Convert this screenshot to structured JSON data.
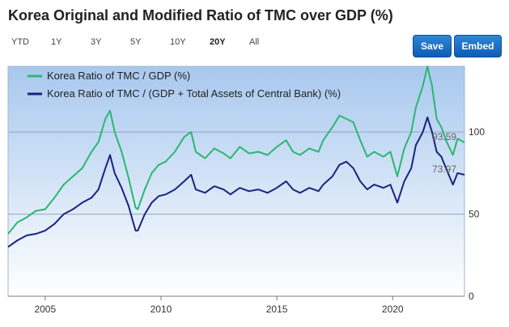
{
  "header": {
    "title": "Korea Original and Modified Ratio of TMC over GDP (%)"
  },
  "toolbar": {
    "ranges": [
      {
        "label": "YTD",
        "active": false
      },
      {
        "label": "1Y",
        "active": false
      },
      {
        "label": "3Y",
        "active": false
      },
      {
        "label": "5Y",
        "active": false
      },
      {
        "label": "10Y",
        "active": false
      },
      {
        "label": "20Y",
        "active": true
      },
      {
        "label": "All",
        "active": false
      }
    ],
    "save_label": "Save",
    "embed_label": "Embed"
  },
  "chart_data": {
    "type": "line",
    "title": "Korea Original and Modified Ratio of TMC over GDP (%)",
    "xlabel": "",
    "ylabel": "",
    "xlim": [
      2003.4,
      2023.1
    ],
    "ylim": [
      0,
      140
    ],
    "x_ticks": [
      "2005",
      "2010",
      "2015",
      "2020"
    ],
    "y_ticks": [
      "0",
      "50",
      "100"
    ],
    "grid": "horizontal",
    "legend_position": "top-left",
    "colors": {
      "original": "#2bb673",
      "modified": "#1a237e",
      "plot_top": "#a8c8ee",
      "plot_bottom": "#ffffff"
    },
    "series": [
      {
        "name": "Korea Ratio of TMC / GDP (%)",
        "end_label": "93.59",
        "points": [
          [
            2003.4,
            38
          ],
          [
            2003.8,
            45
          ],
          [
            2004.2,
            48
          ],
          [
            2004.6,
            52
          ],
          [
            2005.0,
            53
          ],
          [
            2005.4,
            60
          ],
          [
            2005.8,
            68
          ],
          [
            2006.2,
            73
          ],
          [
            2006.6,
            78
          ],
          [
            2007.0,
            88
          ],
          [
            2007.3,
            94
          ],
          [
            2007.6,
            108
          ],
          [
            2007.8,
            113
          ],
          [
            2008.0,
            100
          ],
          [
            2008.3,
            88
          ],
          [
            2008.6,
            72
          ],
          [
            2008.9,
            54
          ],
          [
            2009.0,
            53
          ],
          [
            2009.3,
            65
          ],
          [
            2009.6,
            75
          ],
          [
            2009.9,
            80
          ],
          [
            2010.2,
            82
          ],
          [
            2010.6,
            88
          ],
          [
            2011.0,
            97
          ],
          [
            2011.3,
            100
          ],
          [
            2011.5,
            88
          ],
          [
            2011.9,
            84
          ],
          [
            2012.3,
            90
          ],
          [
            2012.7,
            87
          ],
          [
            2013.0,
            84
          ],
          [
            2013.4,
            91
          ],
          [
            2013.8,
            87
          ],
          [
            2014.2,
            88
          ],
          [
            2014.6,
            86
          ],
          [
            2015.0,
            91
          ],
          [
            2015.4,
            95
          ],
          [
            2015.7,
            88
          ],
          [
            2016.0,
            86
          ],
          [
            2016.4,
            90
          ],
          [
            2016.8,
            88
          ],
          [
            2017.0,
            95
          ],
          [
            2017.4,
            103
          ],
          [
            2017.7,
            110
          ],
          [
            2018.0,
            108
          ],
          [
            2018.3,
            106
          ],
          [
            2018.6,
            95
          ],
          [
            2018.9,
            85
          ],
          [
            2019.2,
            88
          ],
          [
            2019.6,
            85
          ],
          [
            2019.9,
            88
          ],
          [
            2020.2,
            73
          ],
          [
            2020.5,
            90
          ],
          [
            2020.8,
            100
          ],
          [
            2021.0,
            115
          ],
          [
            2021.3,
            128
          ],
          [
            2021.5,
            140
          ],
          [
            2021.7,
            128
          ],
          [
            2021.9,
            108
          ],
          [
            2022.1,
            103
          ],
          [
            2022.3,
            95
          ],
          [
            2022.6,
            86
          ],
          [
            2022.8,
            96
          ],
          [
            2023.1,
            93.59
          ]
        ]
      },
      {
        "name": "Korea Ratio of TMC / (GDP + Total Assets of Central Bank) (%)",
        "end_label": "73.97",
        "points": [
          [
            2003.4,
            30
          ],
          [
            2003.8,
            34
          ],
          [
            2004.2,
            37
          ],
          [
            2004.6,
            38
          ],
          [
            2005.0,
            40
          ],
          [
            2005.4,
            44
          ],
          [
            2005.8,
            50
          ],
          [
            2006.2,
            53
          ],
          [
            2006.6,
            57
          ],
          [
            2007.0,
            60
          ],
          [
            2007.3,
            65
          ],
          [
            2007.6,
            78
          ],
          [
            2007.8,
            86
          ],
          [
            2008.0,
            75
          ],
          [
            2008.3,
            66
          ],
          [
            2008.6,
            55
          ],
          [
            2008.9,
            40
          ],
          [
            2009.0,
            40
          ],
          [
            2009.3,
            50
          ],
          [
            2009.6,
            57
          ],
          [
            2009.9,
            61
          ],
          [
            2010.2,
            62
          ],
          [
            2010.6,
            65
          ],
          [
            2011.0,
            70
          ],
          [
            2011.3,
            74
          ],
          [
            2011.5,
            65
          ],
          [
            2011.9,
            63
          ],
          [
            2012.3,
            67
          ],
          [
            2012.7,
            65
          ],
          [
            2013.0,
            62
          ],
          [
            2013.4,
            66
          ],
          [
            2013.8,
            64
          ],
          [
            2014.2,
            65
          ],
          [
            2014.6,
            63
          ],
          [
            2015.0,
            66
          ],
          [
            2015.4,
            70
          ],
          [
            2015.7,
            65
          ],
          [
            2016.0,
            63
          ],
          [
            2016.4,
            66
          ],
          [
            2016.8,
            64
          ],
          [
            2017.0,
            68
          ],
          [
            2017.4,
            73
          ],
          [
            2017.7,
            80
          ],
          [
            2018.0,
            82
          ],
          [
            2018.3,
            78
          ],
          [
            2018.6,
            70
          ],
          [
            2018.9,
            65
          ],
          [
            2019.2,
            68
          ],
          [
            2019.6,
            66
          ],
          [
            2019.9,
            68
          ],
          [
            2020.2,
            57
          ],
          [
            2020.5,
            70
          ],
          [
            2020.8,
            78
          ],
          [
            2021.0,
            92
          ],
          [
            2021.3,
            100
          ],
          [
            2021.5,
            109
          ],
          [
            2021.7,
            100
          ],
          [
            2021.9,
            88
          ],
          [
            2022.1,
            85
          ],
          [
            2022.3,
            78
          ],
          [
            2022.6,
            68
          ],
          [
            2022.8,
            75
          ],
          [
            2023.1,
            73.97
          ]
        ]
      }
    ]
  }
}
